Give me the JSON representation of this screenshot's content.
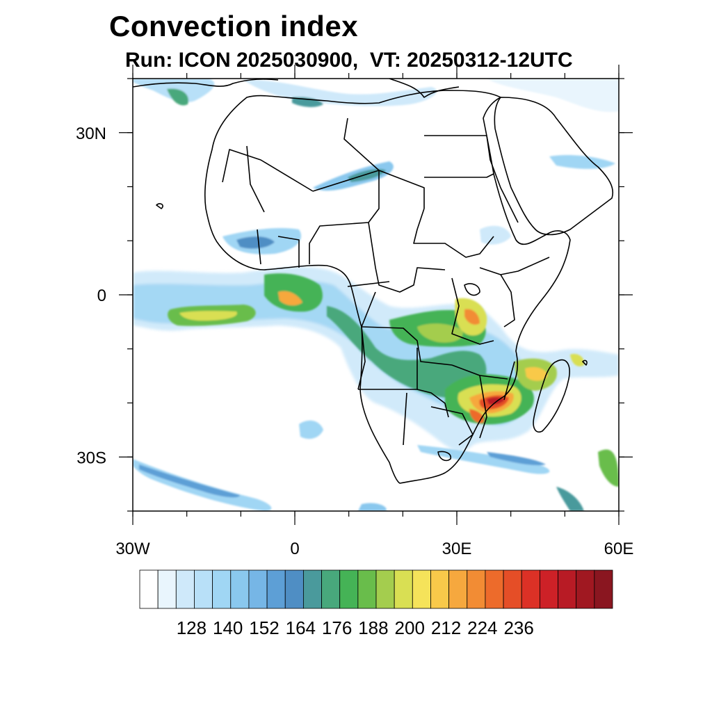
{
  "title": "Convection index",
  "subtitle": "Run: ICON 2025030900,  VT: 20250312-12UTC",
  "map": {
    "region": "Africa",
    "lon_range": [
      -30,
      60
    ],
    "lat_range": [
      -40,
      40
    ],
    "lon_ticks": [
      {
        "value": -30,
        "label": "30W"
      },
      {
        "value": 0,
        "label": "0"
      },
      {
        "value": 30,
        "label": "30E"
      },
      {
        "value": 60,
        "label": "60E"
      }
    ],
    "lat_ticks": [
      {
        "value": 30,
        "label": "30N"
      },
      {
        "value": 0,
        "label": "0"
      },
      {
        "value": -30,
        "label": "30S"
      }
    ],
    "minor_lon_step": 10,
    "minor_lat_step": 10
  },
  "colorbar": {
    "colors": [
      "#ffffff",
      "#e9f5fd",
      "#cfe9fa",
      "#b8e0f8",
      "#a0d6f4",
      "#8ac8ee",
      "#76b6e6",
      "#5d9fd6",
      "#4f8ec4",
      "#4a9a9c",
      "#48a87c",
      "#45b356",
      "#69bd4b",
      "#a4cd4e",
      "#d9df53",
      "#f5e35a",
      "#f8c94a",
      "#f6a83e",
      "#f28c34",
      "#ed6b2b",
      "#e54e27",
      "#dc3126",
      "#cd2127",
      "#b81b25",
      "#a01821",
      "#8a1620"
    ],
    "tick_labels": [
      "128",
      "140",
      "152",
      "164",
      "176",
      "188",
      "200",
      "212",
      "224",
      "236"
    ]
  }
}
